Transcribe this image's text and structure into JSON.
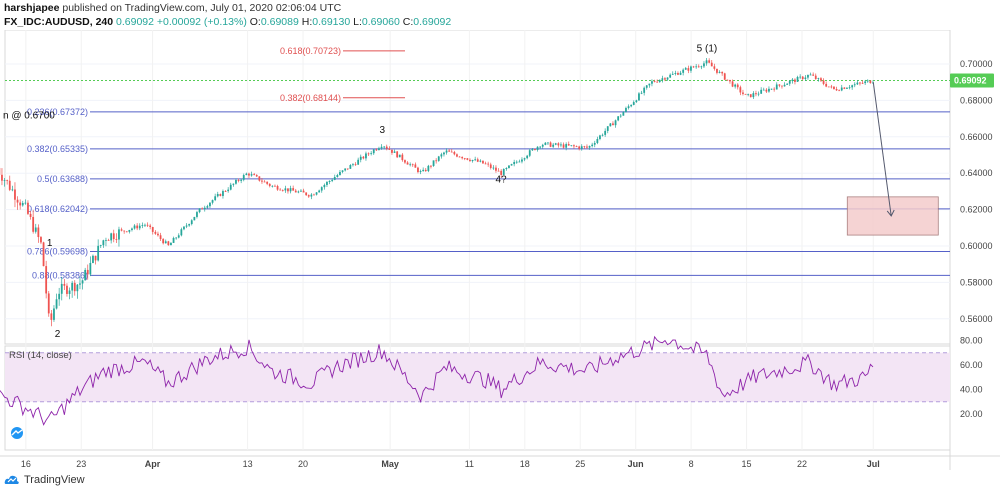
{
  "header": {
    "author_line_prefix": "harshjapee",
    "author_line_suffix": " published on TradingView.com, July 01, 2020 02:06:04 UTC",
    "symbol": "FX_IDC:AUDUSD, 240",
    "last": "0.69092",
    "change": "+0.00092 (+0.13%)",
    "o_label": "O:",
    "o_value": "0.69089",
    "h_label": "H:",
    "h_value": "0.69130",
    "l_label": "L:",
    "l_value": "0.69060",
    "c_label": "C:",
    "c_value": "0.69092"
  },
  "footer": {
    "brand": "TradingView"
  },
  "colors": {
    "up": "#26a69a",
    "down": "#ef5350",
    "fib": "#5560c8",
    "fib_red": "#e05050",
    "price_line": "#55cc55",
    "rsi": "#8e24aa",
    "rsi_band": "#f3e5f5",
    "target_box": "#f4cccc"
  },
  "chart_data": [
    {
      "type": "candlestick",
      "title": "",
      "y_axis_ticks": [
        0.56,
        0.58,
        0.6,
        0.62,
        0.64,
        0.66,
        0.68,
        0.7
      ],
      "y_axis_labels": [
        "0.56000",
        "0.58000",
        "0.60000",
        "0.62000",
        "0.64000",
        "0.66000",
        "0.68000",
        "0.70000"
      ],
      "ylim": [
        0.545,
        0.711
      ],
      "x_ticks": [
        "16",
        "23",
        "Apr",
        "13",
        "20",
        "May",
        "11",
        "18",
        "25",
        "Jun",
        "8",
        "15",
        "22",
        "Jul"
      ],
      "last_price_label": "0.69092",
      "last_price": 0.69092,
      "fib_levels": [
        {
          "label": "0.618(0.70723)",
          "value": 0.70723,
          "color": "red",
          "span": "short"
        },
        {
          "label": "0.382(0.68144)",
          "value": 0.68144,
          "color": "red",
          "span": "short"
        },
        {
          "label": "0.236(0.67372)",
          "value": 0.67372,
          "color": "blue",
          "span": "full"
        },
        {
          "label": "0.382(0.65335)",
          "value": 0.65335,
          "color": "blue",
          "span": "full"
        },
        {
          "label": "0.5(0.63688)",
          "value": 0.63688,
          "color": "blue",
          "span": "full"
        },
        {
          "label": "0.618(0.62042)",
          "value": 0.62042,
          "color": "blue",
          "span": "full"
        },
        {
          "label": "0.786(0.59698)",
          "value": 0.59698,
          "color": "blue",
          "span": "full"
        },
        {
          "label": "0.88(0.58386)",
          "value": 0.58386,
          "color": "blue",
          "span": "full"
        }
      ],
      "annotation_left": "n @ 0.6700",
      "wave_labels": [
        {
          "text": "1",
          "date": "Mar 19",
          "price": 0.6
        },
        {
          "text": "2",
          "date": "Mar 20",
          "price": 0.55
        },
        {
          "text": "3",
          "date": "Apr 30",
          "price": 0.662
        },
        {
          "text": "4?",
          "date": "May 15",
          "price": 0.635
        },
        {
          "text": "5 (1)",
          "date": "Jun 10",
          "price": 0.707
        }
      ],
      "target_zone": {
        "from": "Jul 1",
        "to": "Jul 6",
        "price_low": 0.606,
        "price_high": 0.627
      },
      "projection_arrow": {
        "from_date": "Jul 1",
        "from_price": 0.69,
        "to_date": "Jul 2",
        "to_price": 0.6165
      },
      "price_series": [
        {
          "date": "Mar 12",
          "price": 0.645
        },
        {
          "date": "Mar 16",
          "price": 0.62
        },
        {
          "date": "Mar 18",
          "price": 0.6
        },
        {
          "date": "Mar 19",
          "price": 0.555
        },
        {
          "date": "Mar 20",
          "price": 0.575
        },
        {
          "date": "Mar 23",
          "price": 0.58
        },
        {
          "date": "Mar 26",
          "price": 0.605
        },
        {
          "date": "Mar 31",
          "price": 0.612
        },
        {
          "date": "Apr 3",
          "price": 0.6
        },
        {
          "date": "Apr 7",
          "price": 0.62
        },
        {
          "date": "Apr 13",
          "price": 0.64
        },
        {
          "date": "Apr 16",
          "price": 0.633
        },
        {
          "date": "Apr 21",
          "price": 0.628
        },
        {
          "date": "Apr 24",
          "price": 0.638
        },
        {
          "date": "Apr 30",
          "price": 0.656
        },
        {
          "date": "May 5",
          "price": 0.64
        },
        {
          "date": "May 8",
          "price": 0.652
        },
        {
          "date": "May 13",
          "price": 0.645
        },
        {
          "date": "May 15",
          "price": 0.64
        },
        {
          "date": "May 20",
          "price": 0.656
        },
        {
          "date": "May 26",
          "price": 0.654
        },
        {
          "date": "May 29",
          "price": 0.667
        },
        {
          "date": "Jun 3",
          "price": 0.69
        },
        {
          "date": "Jun 10",
          "price": 0.701
        },
        {
          "date": "Jun 15",
          "price": 0.682
        },
        {
          "date": "Jun 19",
          "price": 0.688
        },
        {
          "date": "Jun 23",
          "price": 0.694
        },
        {
          "date": "Jun 26",
          "price": 0.686
        },
        {
          "date": "Jul 1",
          "price": 0.69092
        }
      ]
    },
    {
      "type": "line",
      "title": "RSI (14, close)",
      "ylim": [
        0,
        85
      ],
      "y_axis_ticks": [
        20,
        40,
        60,
        80
      ],
      "y_axis_labels": [
        "20.00",
        "40.00",
        "60.00",
        "80.00"
      ],
      "band": [
        30,
        70
      ],
      "last_value": 60,
      "series": [
        {
          "date": "Mar 12",
          "value": 38
        },
        {
          "date": "Mar 16",
          "value": 25
        },
        {
          "date": "Mar 19",
          "value": 14
        },
        {
          "date": "Mar 23",
          "value": 40
        },
        {
          "date": "Mar 26",
          "value": 55
        },
        {
          "date": "Mar 31",
          "value": 62
        },
        {
          "date": "Apr 3",
          "value": 45
        },
        {
          "date": "Apr 8",
          "value": 65
        },
        {
          "date": "Apr 13",
          "value": 75
        },
        {
          "date": "Apr 16",
          "value": 55
        },
        {
          "date": "Apr 21",
          "value": 45
        },
        {
          "date": "Apr 24",
          "value": 58
        },
        {
          "date": "Apr 30",
          "value": 72
        },
        {
          "date": "May 5",
          "value": 35
        },
        {
          "date": "May 8",
          "value": 58
        },
        {
          "date": "May 13",
          "value": 48
        },
        {
          "date": "May 15",
          "value": 40
        },
        {
          "date": "May 20",
          "value": 62
        },
        {
          "date": "May 26",
          "value": 55
        },
        {
          "date": "May 29",
          "value": 65
        },
        {
          "date": "Jun 3",
          "value": 76
        },
        {
          "date": "Jun 5",
          "value": 82
        },
        {
          "date": "Jun 10",
          "value": 68
        },
        {
          "date": "Jun 12",
          "value": 35
        },
        {
          "date": "Jun 16",
          "value": 50
        },
        {
          "date": "Jun 19",
          "value": 55
        },
        {
          "date": "Jun 23",
          "value": 62
        },
        {
          "date": "Jun 26",
          "value": 44
        },
        {
          "date": "Jun 30",
          "value": 50
        },
        {
          "date": "Jul 1",
          "value": 60
        }
      ]
    }
  ]
}
